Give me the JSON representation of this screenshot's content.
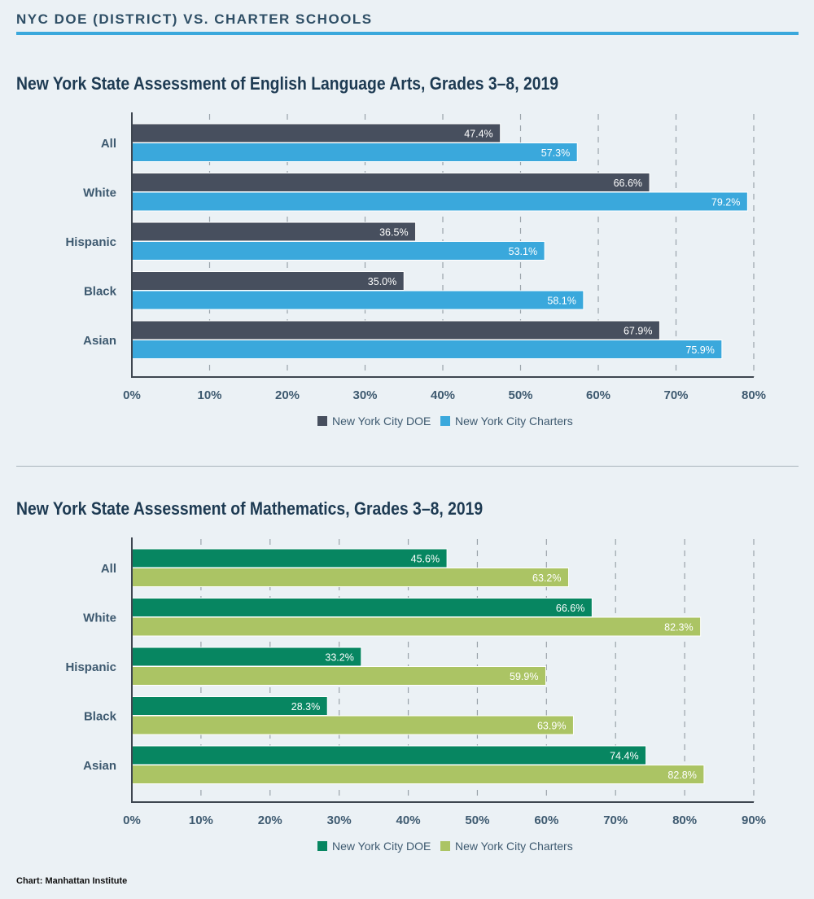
{
  "header": "NYC DOE (DISTRICT) VS. CHARTER SCHOOLS",
  "footer": "Chart: Manhattan Institute",
  "colors": {
    "background": "#ebf1f5",
    "accent": "#3aa8dc",
    "doe_ela": "#474f5e",
    "charter_ela": "#3aa8dc",
    "doe_math": "#078661",
    "charter_math": "#abc464"
  },
  "chart_data": [
    {
      "type": "bar",
      "orientation": "horizontal",
      "title": "New York State Assessment of English Language Arts, Grades 3–8, 2019",
      "categories": [
        "All",
        "White",
        "Hispanic",
        "Black",
        "Asian"
      ],
      "series": [
        {
          "name": "New York City DOE",
          "values": [
            47.4,
            66.6,
            36.5,
            35.0,
            67.9
          ],
          "labels": [
            "47.4%",
            "66.6%",
            "36.5%",
            "35.0%",
            "67.9%"
          ],
          "color": "#474f5e"
        },
        {
          "name": "New York City Charters",
          "values": [
            57.3,
            79.2,
            53.1,
            58.1,
            75.9
          ],
          "labels": [
            "57.3%",
            "79.2%",
            "53.1%",
            "58.1%",
            "75.9%"
          ],
          "color": "#3aa8dc"
        }
      ],
      "xlim": [
        0,
        80
      ],
      "xticks": [
        "0%",
        "10%",
        "20%",
        "30%",
        "40%",
        "50%",
        "60%",
        "70%",
        "80%"
      ],
      "grid": true,
      "legend": "bottom-center"
    },
    {
      "type": "bar",
      "orientation": "horizontal",
      "title": "New York State Assessment of Mathematics, Grades 3–8, 2019",
      "categories": [
        "All",
        "White",
        "Hispanic",
        "Black",
        "Asian"
      ],
      "series": [
        {
          "name": "New York City DOE",
          "values": [
            45.6,
            66.6,
            33.2,
            28.3,
            74.4
          ],
          "labels": [
            "45.6%",
            "66.6%",
            "33.2%",
            "28.3%",
            "74.4%"
          ],
          "color": "#078661"
        },
        {
          "name": "New York City Charters",
          "values": [
            63.2,
            82.3,
            59.9,
            63.9,
            82.8
          ],
          "labels": [
            "63.2%",
            "82.3%",
            "59.9%",
            "63.9%",
            "82.8%"
          ],
          "color": "#abc464"
        }
      ],
      "xlim": [
        0,
        90
      ],
      "xticks": [
        "0%",
        "10%",
        "20%",
        "30%",
        "40%",
        "50%",
        "60%",
        "70%",
        "80%",
        "90%"
      ],
      "grid": true,
      "legend": "bottom-center"
    }
  ]
}
